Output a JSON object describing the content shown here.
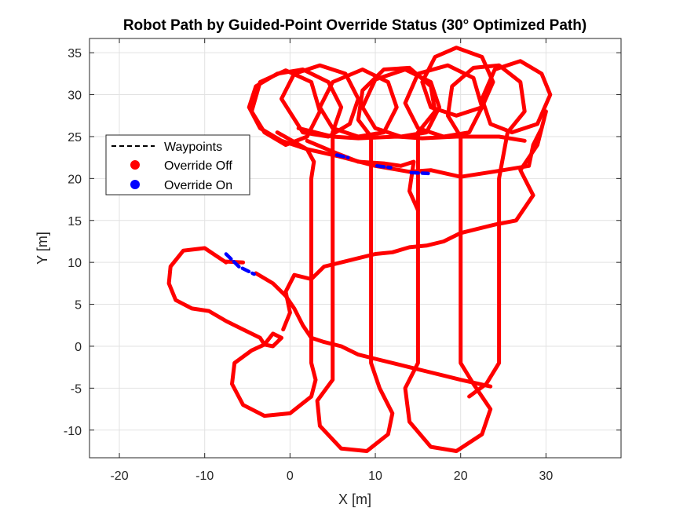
{
  "chart_data": {
    "type": "line",
    "title": "Robot Path by Guided-Point Override Status (30° Optimized Path)",
    "xlabel": "X [m]",
    "ylabel": "Y [m]",
    "xlim": [
      -23.5,
      38.8
    ],
    "ylim": [
      -13.3,
      36.7
    ],
    "xticks": [
      -20,
      -10,
      0,
      10,
      20,
      30
    ],
    "yticks": [
      -10,
      -5,
      0,
      5,
      10,
      15,
      20,
      25,
      30,
      35
    ],
    "grid": true,
    "legend_placement": "upper-left",
    "legend": [
      {
        "label": "Waypoints",
        "style": "dashed-line",
        "color": "#000000"
      },
      {
        "label": "Override Off",
        "style": "marker",
        "color": "#ff0000"
      },
      {
        "label": "Override On",
        "style": "marker",
        "color": "#0000ff"
      }
    ],
    "series": [
      {
        "name": "Override Off",
        "color": "#ff0000",
        "segments": [
          [
            [
              -7.5,
              10.1
            ],
            [
              -5.5,
              10.0
            ]
          ],
          [
            [
              -4.0,
              8.7
            ],
            [
              -2.0,
              7.5
            ],
            [
              -0.5,
              6.0
            ],
            [
              0.5,
              4.5
            ],
            [
              1.5,
              2.5
            ],
            [
              2.5,
              1.0
            ],
            [
              4.0,
              0.5
            ],
            [
              6.0,
              0.0
            ],
            [
              8.0,
              -1.0
            ],
            [
              10.0,
              -1.5
            ],
            [
              12.0,
              -2.0
            ],
            [
              14.0,
              -2.5
            ],
            [
              16.0,
              -3.0
            ],
            [
              18.0,
              -3.5
            ],
            [
              20.0,
              -4.0
            ],
            [
              23.5,
              -4.8
            ]
          ],
          [
            [
              -7.5,
              10.0
            ],
            [
              -10.0,
              11.7
            ],
            [
              -12.5,
              11.4
            ],
            [
              -14.0,
              9.5
            ],
            [
              -14.2,
              7.5
            ],
            [
              -13.4,
              5.5
            ],
            [
              -11.5,
              4.5
            ],
            [
              -9.5,
              4.2
            ],
            [
              -7.5,
              3.0
            ],
            [
              -5.5,
              2.0
            ],
            [
              -3.5,
              1.0
            ],
            [
              -3.0,
              0.2
            ],
            [
              -2.0,
              0.0
            ],
            [
              -1.0,
              1.0
            ],
            [
              -2.0,
              1.5
            ],
            [
              -3.0,
              0.2
            ],
            [
              -4.5,
              -0.5
            ],
            [
              -6.5,
              -2.0
            ],
            [
              -6.8,
              -4.5
            ],
            [
              -5.5,
              -7.0
            ],
            [
              -3.0,
              -8.3
            ],
            [
              0.0,
              -8.0
            ],
            [
              2.5,
              -6.0
            ],
            [
              3.0,
              -4.0
            ],
            [
              2.5,
              -2.0
            ],
            [
              2.5,
              20.0
            ],
            [
              2.8,
              22.0
            ],
            [
              2.0,
              23.5
            ],
            [
              -1.0,
              24.5
            ],
            [
              -3.5,
              26.0
            ],
            [
              -4.8,
              28.5
            ],
            [
              -4.0,
              31.0
            ],
            [
              -1.5,
              32.5
            ],
            [
              1.5,
              33.0
            ],
            [
              4.5,
              31.5
            ],
            [
              6.0,
              28.5
            ],
            [
              5.0,
              25.5
            ],
            [
              5.0,
              -4.0
            ],
            [
              3.2,
              -6.5
            ],
            [
              3.5,
              -9.5
            ],
            [
              6.0,
              -12.2
            ],
            [
              9.0,
              -12.5
            ],
            [
              11.5,
              -10.5
            ],
            [
              12.0,
              -8.0
            ],
            [
              10.5,
              -5.0
            ],
            [
              9.5,
              -2.0
            ],
            [
              9.5,
              25.0
            ],
            [
              8.0,
              27.0
            ],
            [
              8.5,
              30.5
            ],
            [
              11.0,
              33.0
            ],
            [
              14.0,
              33.2
            ],
            [
              16.5,
              31.0
            ],
            [
              17.0,
              28.0
            ],
            [
              15.0,
              25.5
            ],
            [
              15.0,
              -2.0
            ],
            [
              13.5,
              -5.0
            ],
            [
              14.0,
              -9.0
            ],
            [
              16.5,
              -12.0
            ],
            [
              19.5,
              -12.5
            ],
            [
              22.5,
              -10.5
            ],
            [
              23.5,
              -7.5
            ],
            [
              21.5,
              -4.5
            ],
            [
              20.0,
              -2.0
            ],
            [
              20.0,
              25.0
            ],
            [
              18.5,
              27.5
            ],
            [
              19.0,
              31.0
            ],
            [
              21.5,
              33.2
            ],
            [
              24.5,
              33.5
            ],
            [
              27.0,
              31.5
            ],
            [
              27.5,
              28.0
            ],
            [
              25.5,
              25.5
            ],
            [
              24.5,
              20.0
            ],
            [
              24.5,
              -2.0
            ],
            [
              23.0,
              -4.5
            ],
            [
              21.0,
              -6.0
            ]
          ],
          [
            [
              -4.5,
              28.0
            ],
            [
              -3.5,
              31.5
            ],
            [
              -0.5,
              32.9
            ],
            [
              2.5,
              31.5
            ],
            [
              3.5,
              28.0
            ],
            [
              2.0,
              25.0
            ],
            [
              -0.5,
              24.0
            ],
            [
              -3.0,
              25.5
            ],
            [
              -4.5,
              28.0
            ]
          ],
          [
            [
              -1.0,
              29.5
            ],
            [
              0.5,
              32.5
            ],
            [
              3.5,
              33.5
            ],
            [
              6.5,
              32.5
            ],
            [
              8.0,
              29.5
            ],
            [
              7.0,
              26.5
            ],
            [
              4.5,
              25.0
            ],
            [
              1.5,
              25.5
            ],
            [
              -1.0,
              29.5
            ]
          ],
          [
            [
              3.5,
              28.5
            ],
            [
              5.0,
              31.5
            ],
            [
              8.5,
              33.0
            ],
            [
              11.5,
              31.5
            ],
            [
              12.5,
              28.5
            ],
            [
              11.0,
              25.5
            ],
            [
              8.0,
              25.0
            ],
            [
              5.0,
              26.0
            ],
            [
              3.5,
              28.5
            ]
          ],
          [
            [
              8.5,
              28.5
            ],
            [
              10.0,
              31.8
            ],
            [
              13.5,
              33.0
            ],
            [
              16.5,
              31.5
            ],
            [
              17.5,
              28.5
            ],
            [
              16.0,
              25.5
            ],
            [
              13.0,
              25.0
            ],
            [
              10.0,
              26.0
            ],
            [
              8.5,
              28.5
            ]
          ],
          [
            [
              13.5,
              29.0
            ],
            [
              15.0,
              32.5
            ],
            [
              18.5,
              33.5
            ],
            [
              21.5,
              32.0
            ],
            [
              22.5,
              28.5
            ],
            [
              21.0,
              25.5
            ],
            [
              18.0,
              25.0
            ],
            [
              15.0,
              26.0
            ],
            [
              13.5,
              29.0
            ]
          ],
          [
            [
              15.5,
              31.5
            ],
            [
              17.0,
              34.5
            ],
            [
              19.5,
              35.6
            ],
            [
              22.5,
              34.5
            ],
            [
              23.8,
              31.5
            ],
            [
              22.5,
              28.5
            ],
            [
              19.5,
              27.5
            ],
            [
              16.5,
              28.5
            ],
            [
              15.5,
              31.5
            ]
          ],
          [
            [
              22.5,
              29.5
            ],
            [
              24.0,
              33.0
            ],
            [
              27.0,
              34.0
            ],
            [
              29.5,
              32.5
            ],
            [
              30.5,
              30.0
            ],
            [
              29.0,
              26.5
            ],
            [
              26.0,
              25.5
            ],
            [
              23.5,
              26.5
            ],
            [
              22.5,
              29.5
            ]
          ],
          [
            [
              -1.5,
              25.5
            ],
            [
              2.0,
              23.5
            ],
            [
              5.5,
              22.7
            ],
            [
              10.0,
              21.5
            ],
            [
              14.0,
              20.8
            ],
            [
              16.5,
              21.0
            ],
            [
              20.0,
              20.2
            ],
            [
              25.0,
              21.0
            ],
            [
              28.0,
              21.5
            ],
            [
              28.5,
              24.0
            ],
            [
              29.5,
              26.0
            ],
            [
              30.0,
              28.0
            ],
            [
              29.0,
              24.0
            ],
            [
              27.0,
              21.0
            ],
            [
              28.5,
              18.0
            ],
            [
              26.5,
              15.0
            ],
            [
              24.0,
              14.5
            ],
            [
              22.0,
              14.0
            ],
            [
              20.0,
              13.5
            ],
            [
              18.0,
              12.5
            ],
            [
              16.0,
              12.0
            ],
            [
              14.0,
              11.8
            ],
            [
              12.0,
              11.2
            ],
            [
              10.0,
              11.0
            ],
            [
              8.0,
              10.5
            ],
            [
              6.0,
              10.0
            ],
            [
              4.0,
              9.5
            ],
            [
              2.5,
              8.0
            ],
            [
              0.5,
              8.5
            ],
            [
              -0.5,
              6.5
            ],
            [
              0.0,
              4.0
            ],
            [
              -0.8,
              2.0
            ]
          ],
          [
            [
              2.0,
              24.5
            ],
            [
              5.5,
              23.0
            ],
            [
              8.0,
              22.0
            ],
            [
              11.0,
              21.8
            ],
            [
              13.0,
              21.5
            ],
            [
              14.5,
              22.0
            ],
            [
              14.0,
              18.5
            ],
            [
              15.0,
              16.2
            ]
          ],
          [
            [
              1.0,
              26.0
            ],
            [
              5.0,
              25.0
            ],
            [
              8.0,
              24.8
            ],
            [
              12.5,
              25.0
            ],
            [
              15.5,
              24.8
            ],
            [
              19.5,
              25.0
            ],
            [
              24.5,
              25.0
            ],
            [
              27.5,
              24.5
            ]
          ]
        ]
      },
      {
        "name": "Override On",
        "color": "#0000ff",
        "segments": [
          [
            [
              -7.5,
              11.0
            ],
            [
              -6.0,
              9.5
            ],
            [
              -4.2,
              8.6
            ]
          ],
          [
            [
              5.5,
              22.8
            ],
            [
              6.8,
              22.5
            ]
          ],
          [
            [
              10.2,
              21.5
            ],
            [
              11.8,
              21.3
            ]
          ],
          [
            [
              14.2,
              20.7
            ],
            [
              16.2,
              20.6
            ]
          ]
        ]
      }
    ]
  }
}
